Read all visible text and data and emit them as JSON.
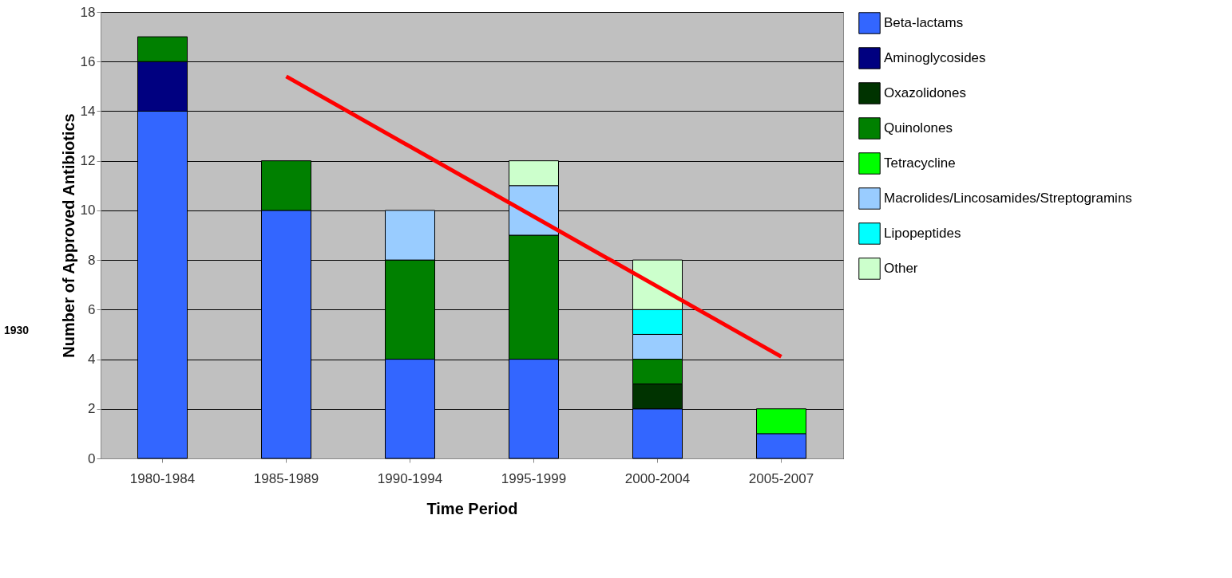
{
  "chart_data": {
    "type": "bar",
    "stacked": true,
    "xlabel": "Time Period",
    "ylabel": "Number of Approved Antibiotics",
    "categories": [
      "1980-1984",
      "1985-1989",
      "1990-1994",
      "1995-1999",
      "2000-2004",
      "2005-2007"
    ],
    "series": [
      {
        "name": "Beta-lactams",
        "color": "#3366ff",
        "values": [
          14,
          10,
          4,
          4,
          2,
          1
        ]
      },
      {
        "name": "Aminoglycosides",
        "color": "#000080",
        "values": [
          2,
          null,
          null,
          null,
          null,
          null
        ]
      },
      {
        "name": "Oxazolidones",
        "color": "#003300",
        "values": [
          null,
          null,
          null,
          null,
          1,
          null
        ]
      },
      {
        "name": "Quinolones",
        "color": "#008000",
        "values": [
          1,
          2,
          4,
          5,
          1,
          null
        ]
      },
      {
        "name": "Tetracycline",
        "color": "#00ff00",
        "values": [
          null,
          null,
          null,
          null,
          null,
          1
        ]
      },
      {
        "name": "Macrolides/Lincosamides/Streptogramins",
        "color": "#99ccff",
        "values": [
          null,
          null,
          2,
          2,
          1,
          null
        ]
      },
      {
        "name": "Lipopeptides",
        "color": "#00ffff",
        "values": [
          null,
          null,
          null,
          null,
          1,
          null
        ]
      },
      {
        "name": "Other",
        "color": "#ccffcc",
        "values": [
          null,
          null,
          null,
          1,
          2,
          null
        ]
      },
      {
        "type": "line",
        "color": "#ff0000",
        "x": [
          "1985-1989",
          "2005-2007"
        ],
        "values": [
          15.4,
          4.1
        ]
      }
    ],
    "ylim": [
      0,
      18
    ],
    "yticks": [
      0,
      2,
      4,
      6,
      8,
      10,
      12,
      14,
      16,
      18
    ],
    "grid": "y",
    "legend": "right",
    "annotations": [
      "1930"
    ]
  }
}
